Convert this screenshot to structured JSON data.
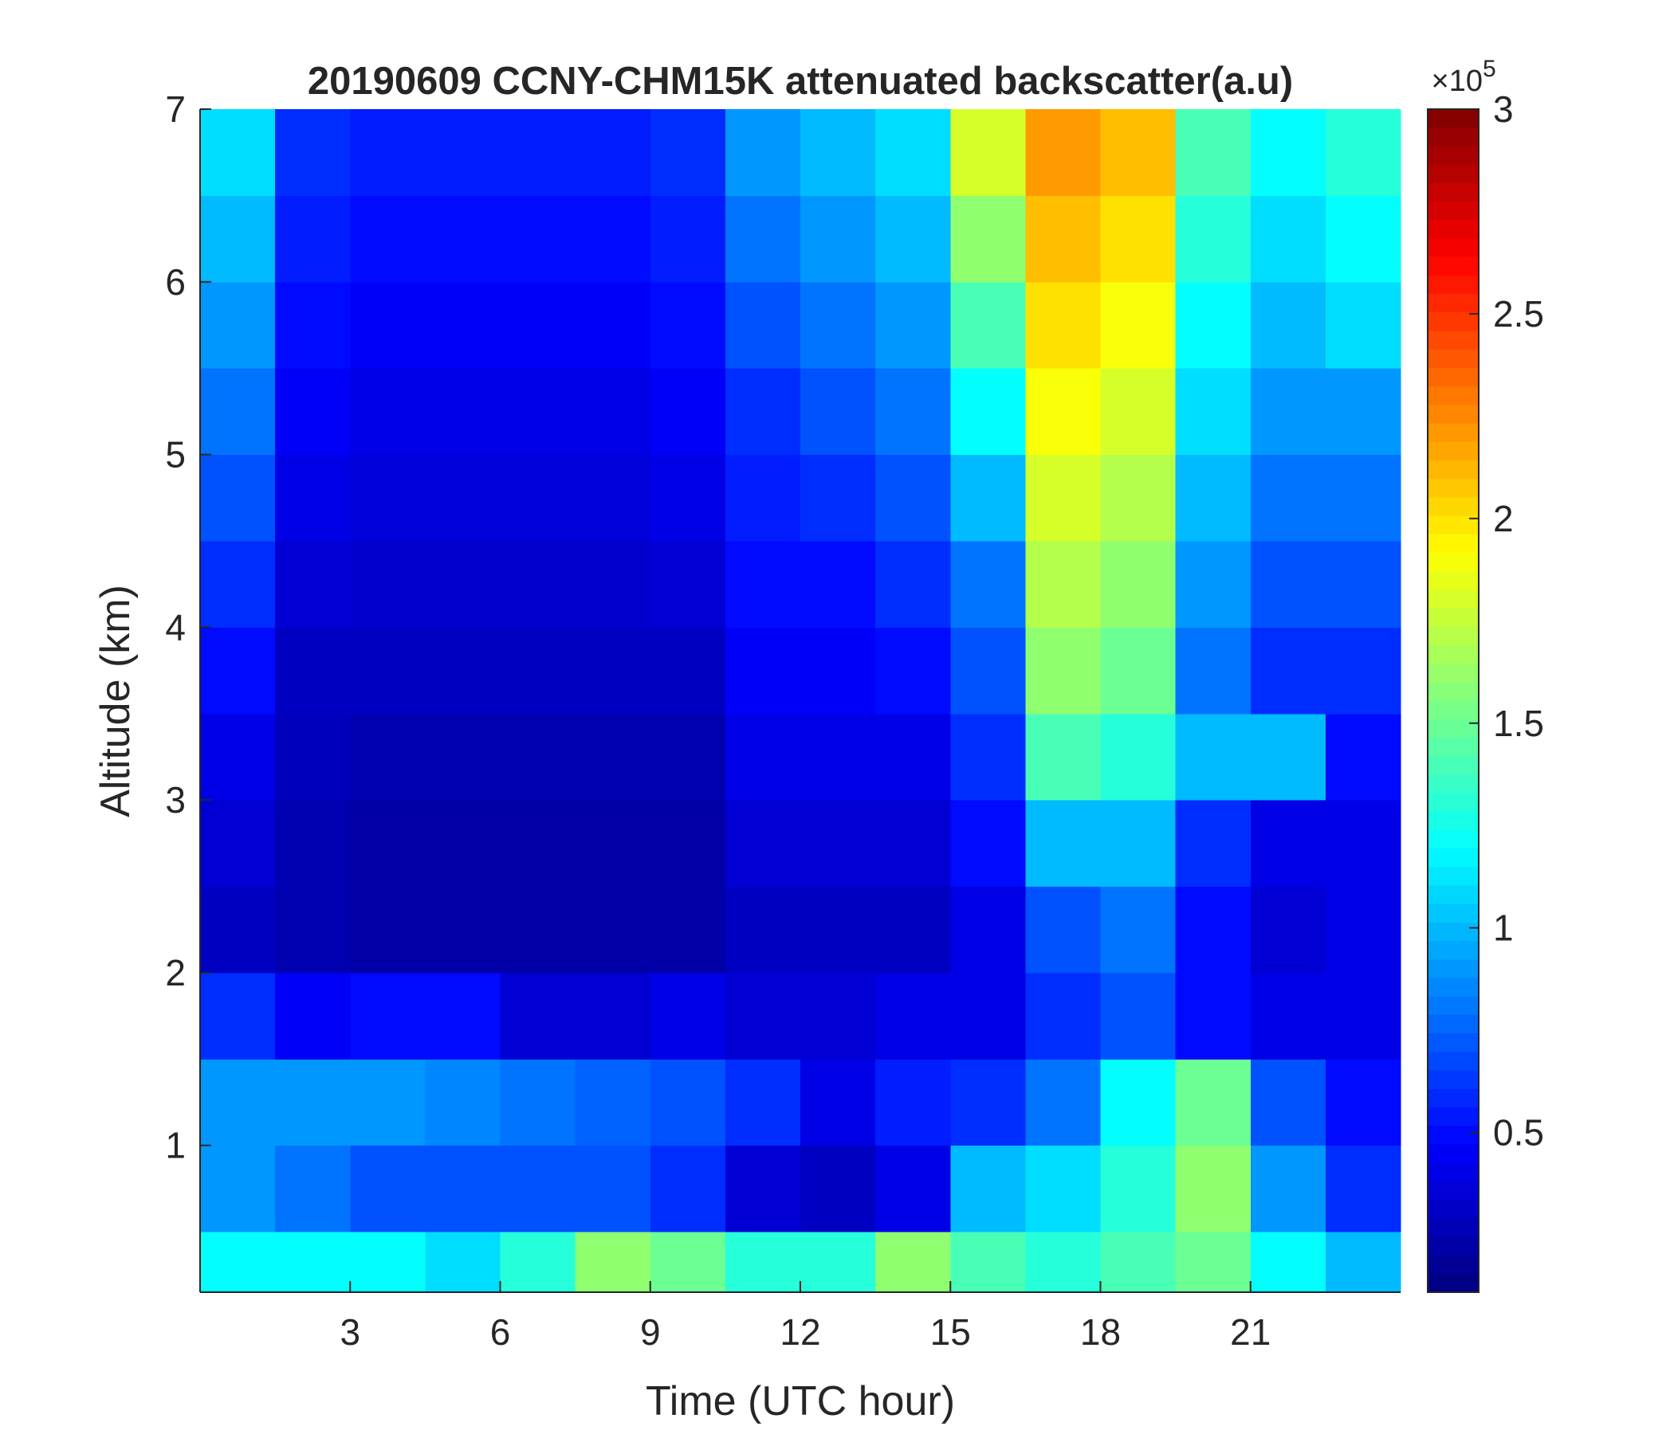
{
  "chart_data": {
    "type": "heatmap",
    "title": "20190609 CCNY-CHM15K attenuated backscatter(a.u)",
    "x_label": "Time (UTC hour)",
    "y_label": "Altitude (km)",
    "xlim": [
      0,
      24
    ],
    "ylim": [
      0.15,
      7
    ],
    "xticks": [
      3,
      6,
      9,
      12,
      15,
      18,
      21
    ],
    "yticks": [
      1,
      2,
      3,
      4,
      5,
      6,
      7
    ],
    "x_edges": [
      0,
      1.5,
      3,
      4.5,
      6,
      7.5,
      9,
      10.5,
      12,
      13.5,
      15,
      16.5,
      18,
      19.5,
      21,
      22.5,
      24
    ],
    "y_edges": [
      0.15,
      0.5,
      1,
      1.5,
      2,
      2.5,
      3,
      3.5,
      4,
      4.5,
      5,
      5.5,
      6,
      6.5,
      7
    ],
    "values": [
      [
        120000,
        120000,
        120000,
        110000,
        130000,
        160000,
        150000,
        130000,
        130000,
        160000,
        140000,
        130000,
        140000,
        150000,
        120000,
        100000
      ],
      [
        90000,
        80000,
        70000,
        70000,
        70000,
        70000,
        60000,
        35000,
        30000,
        40000,
        100000,
        110000,
        130000,
        160000,
        90000,
        60000
      ],
      [
        90000,
        90000,
        90000,
        85000,
        80000,
        75000,
        70000,
        60000,
        40000,
        55000,
        60000,
        80000,
        120000,
        150000,
        70000,
        50000
      ],
      [
        60000,
        45000,
        50000,
        50000,
        35000,
        35000,
        40000,
        35000,
        35000,
        40000,
        40000,
        60000,
        70000,
        50000,
        40000,
        40000
      ],
      [
        30000,
        25000,
        22000,
        22000,
        22000,
        22000,
        22000,
        30000,
        30000,
        30000,
        40000,
        70000,
        80000,
        50000,
        35000,
        40000
      ],
      [
        35000,
        25000,
        22000,
        22000,
        22000,
        22000,
        22000,
        35000,
        35000,
        35000,
        50000,
        100000,
        100000,
        60000,
        40000,
        40000
      ],
      [
        40000,
        28000,
        25000,
        25000,
        25000,
        25000,
        25000,
        40000,
        40000,
        40000,
        60000,
        140000,
        130000,
        100000,
        100000,
        50000
      ],
      [
        50000,
        30000,
        30000,
        30000,
        30000,
        30000,
        30000,
        45000,
        45000,
        50000,
        70000,
        160000,
        150000,
        80000,
        60000,
        60000
      ],
      [
        60000,
        35000,
        33000,
        33000,
        33000,
        33000,
        35000,
        50000,
        50000,
        60000,
        80000,
        170000,
        160000,
        90000,
        70000,
        70000
      ],
      [
        70000,
        40000,
        37000,
        37000,
        37000,
        37000,
        40000,
        55000,
        60000,
        70000,
        100000,
        180000,
        170000,
        100000,
        80000,
        80000
      ],
      [
        80000,
        45000,
        40000,
        40000,
        40000,
        40000,
        45000,
        60000,
        70000,
        80000,
        120000,
        190000,
        180000,
        110000,
        90000,
        90000
      ],
      [
        90000,
        50000,
        45000,
        45000,
        45000,
        45000,
        50000,
        70000,
        80000,
        90000,
        140000,
        200000,
        190000,
        120000,
        100000,
        110000
      ],
      [
        100000,
        55000,
        50000,
        50000,
        50000,
        50000,
        55000,
        80000,
        90000,
        100000,
        160000,
        210000,
        200000,
        130000,
        110000,
        120000
      ],
      [
        110000,
        60000,
        55000,
        55000,
        55000,
        55000,
        60000,
        90000,
        100000,
        110000,
        180000,
        220000,
        210000,
        140000,
        120000,
        130000
      ]
    ],
    "colormap": "jet",
    "clim": [
      11000,
      300000
    ],
    "colorbar_ticks": [
      {
        "value": 50000,
        "label": "0.5"
      },
      {
        "value": 100000,
        "label": "1"
      },
      {
        "value": 150000,
        "label": "1.5"
      },
      {
        "value": 200000,
        "label": "2"
      },
      {
        "value": 250000,
        "label": "2.5"
      },
      {
        "value": 300000,
        "label": "3"
      }
    ],
    "colorbar_multiplier": "×10",
    "colorbar_exponent": "5"
  }
}
